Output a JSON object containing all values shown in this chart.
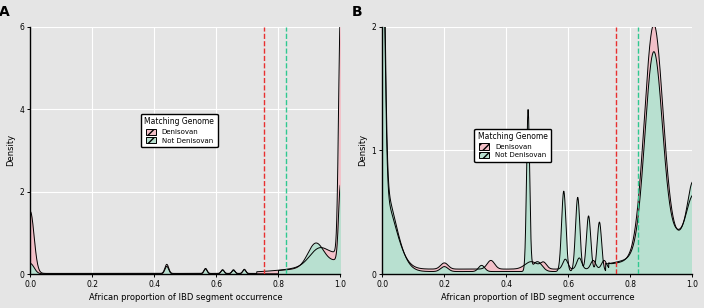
{
  "fig_width": 7.04,
  "fig_height": 3.08,
  "dpi": 100,
  "bg_color": "#e5e5e5",
  "panel_bg": "#e5e5e5",
  "pink_fill": "#f2c0c8",
  "green_fill": "#b8e0d0",
  "dashed_red": "#e83030",
  "dashed_teal": "#30c890",
  "xlabel": "African proportion of IBD segment occurrence",
  "ylabel": "Density",
  "xlim": [
    0.0,
    1.0
  ],
  "xticks": [
    0.0,
    0.2,
    0.4,
    0.6,
    0.8,
    1.0
  ],
  "legend_title": "Matching Genome",
  "legend_entries": [
    "Denisovan",
    "Not Denisovan"
  ],
  "panel_A_ylim": [
    0,
    6
  ],
  "panel_A_yticks": [
    0,
    2,
    4,
    6
  ],
  "panel_B_ylim": [
    0,
    2
  ],
  "panel_B_yticks": [
    0,
    1,
    2
  ],
  "vline_red": 0.755,
  "vline_teal": 0.825
}
